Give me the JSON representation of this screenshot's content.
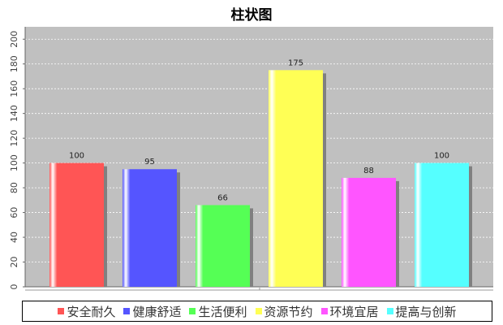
{
  "chart_data": {
    "type": "bar",
    "title": "柱状图",
    "categories": [
      "安全耐久",
      "健康舒适",
      "生活便利",
      "资源节约",
      "环境宜居",
      "提高与创新"
    ],
    "values": [
      100,
      95,
      66,
      175,
      88,
      100
    ],
    "colors": [
      "#FF5555",
      "#5555FF",
      "#55FF55",
      "#FFFF55",
      "#FF55FF",
      "#55FFFF"
    ],
    "ylim": [
      0,
      210
    ],
    "yticks": [
      0,
      20,
      40,
      60,
      80,
      100,
      120,
      140,
      160,
      180,
      200
    ],
    "grid": true,
    "legend": "bottom",
    "plot_background": "#C0C0C0"
  }
}
